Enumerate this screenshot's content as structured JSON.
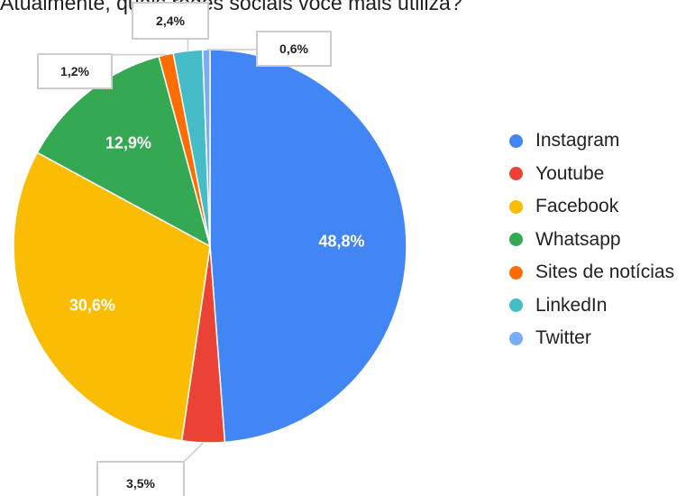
{
  "chart_data": {
    "type": "pie",
    "title": "Atualmente, quais redes sociais você mais utiliza?",
    "slices": [
      {
        "label": "Instagram",
        "value": 48.8,
        "display": "48,8%",
        "color": "#4285f4"
      },
      {
        "label": "Youtube",
        "value": 3.5,
        "display": "3,5%",
        "color": "#ea4335"
      },
      {
        "label": "Facebook",
        "value": 30.6,
        "display": "30,6%",
        "color": "#fbbc04"
      },
      {
        "label": "Whatsapp",
        "value": 12.9,
        "display": "12,9%",
        "color": "#34a853"
      },
      {
        "label": "Sites de notícias",
        "value": 1.2,
        "display": "1,2%",
        "color": "#ff6d01"
      },
      {
        "label": "LinkedIn",
        "value": 2.4,
        "display": "2,4%",
        "color": "#46bdc6"
      },
      {
        "label": "Twitter",
        "value": 0.6,
        "display": "0,6%",
        "color": "#7baaf7"
      }
    ],
    "start_angle_deg": 0,
    "direction": "clockwise",
    "legend_position": "right"
  }
}
